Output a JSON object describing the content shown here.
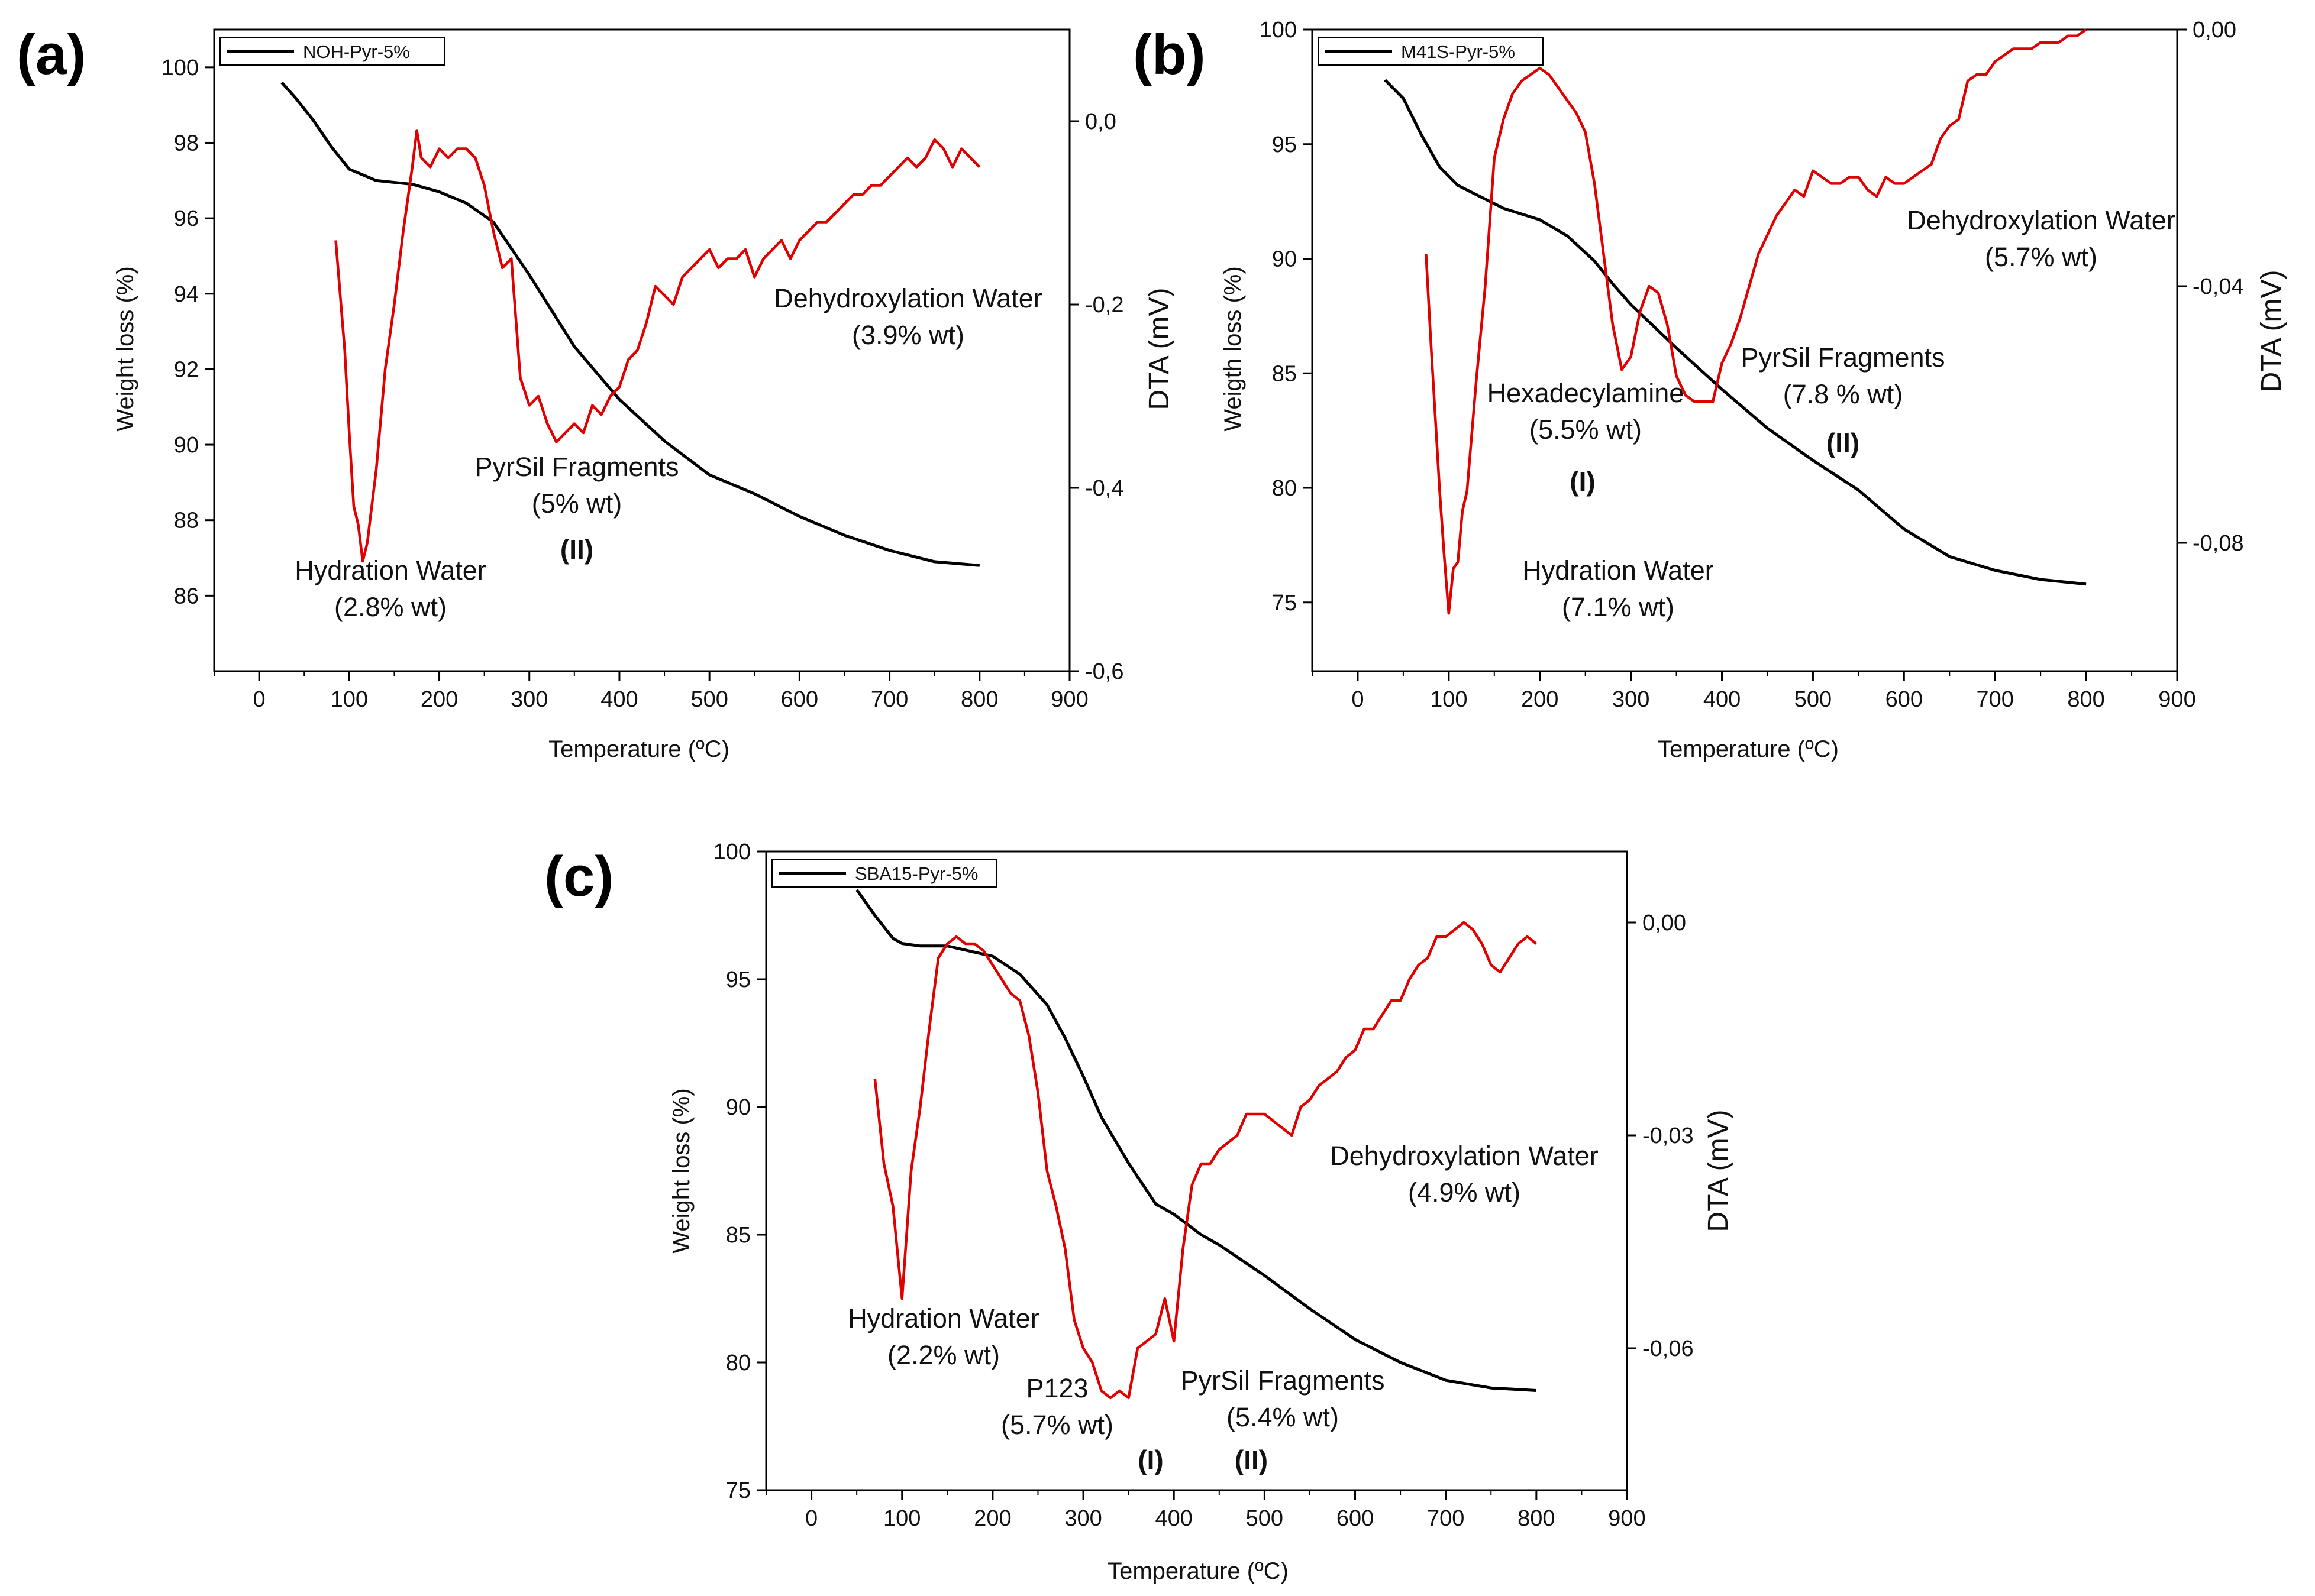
{
  "chart_data": [
    {
      "type": "line",
      "panel_label": "(a)",
      "xlabel": "Temperature (ºC)",
      "ylabel": "Weight loss (%)",
      "y2label": "DTA (mV)",
      "xlim": [
        -50,
        900
      ],
      "ylim": [
        84,
        101
      ],
      "y2lim": [
        -0.6,
        0.1
      ],
      "xticks": [
        "0",
        "100",
        "200",
        "300",
        "400",
        "500",
        "600",
        "700",
        "800",
        "900"
      ],
      "yticks": [
        "86",
        "88",
        "90",
        "92",
        "94",
        "96",
        "98",
        "100"
      ],
      "y2ticks": [
        "0,0",
        "-0,2",
        "-0,4",
        "-0,6"
      ],
      "legend": {
        "position": "top-left",
        "label": "NOH-Pyr-5%"
      },
      "series": [
        {
          "name": "NOH-Pyr-5%",
          "axis": "left",
          "color": "#000000",
          "x": [
            25,
            40,
            60,
            80,
            100,
            130,
            170,
            200,
            230,
            260,
            300,
            350,
            400,
            450,
            500,
            550,
            600,
            650,
            700,
            750,
            800
          ],
          "y": [
            99.6,
            99.2,
            98.6,
            97.9,
            97.3,
            97.0,
            96.9,
            96.7,
            96.4,
            95.9,
            94.5,
            92.6,
            91.2,
            90.1,
            89.2,
            88.7,
            88.1,
            87.6,
            87.2,
            86.9,
            86.8
          ]
        },
        {
          "name": "DTA",
          "axis": "right",
          "color": "#e00000",
          "x": [
            85,
            95,
            100,
            105,
            110,
            115,
            120,
            130,
            140,
            150,
            160,
            170,
            175,
            180,
            190,
            200,
            210,
            220,
            230,
            240,
            250,
            260,
            270,
            280,
            290,
            300,
            310,
            320,
            330,
            340,
            350,
            360,
            370,
            380,
            390,
            400,
            410,
            420,
            430,
            440,
            450,
            460,
            470,
            480,
            490,
            500,
            510,
            520,
            530,
            540,
            550,
            560,
            570,
            580,
            590,
            600,
            610,
            620,
            630,
            640,
            650,
            660,
            670,
            680,
            690,
            700,
            710,
            720,
            730,
            740,
            750,
            760,
            770,
            780,
            790,
            800
          ],
          "y": [
            -0.13,
            -0.25,
            -0.34,
            -0.42,
            -0.44,
            -0.48,
            -0.46,
            -0.38,
            -0.27,
            -0.2,
            -0.12,
            -0.05,
            -0.01,
            -0.04,
            -0.05,
            -0.03,
            -0.04,
            -0.03,
            -0.03,
            -0.04,
            -0.07,
            -0.12,
            -0.16,
            -0.15,
            -0.28,
            -0.31,
            -0.3,
            -0.33,
            -0.35,
            -0.34,
            -0.33,
            -0.34,
            -0.31,
            -0.32,
            -0.3,
            -0.29,
            -0.26,
            -0.25,
            -0.22,
            -0.18,
            -0.19,
            -0.2,
            -0.17,
            -0.16,
            -0.15,
            -0.14,
            -0.16,
            -0.15,
            -0.15,
            -0.14,
            -0.17,
            -0.15,
            -0.14,
            -0.13,
            -0.15,
            -0.13,
            -0.12,
            -0.11,
            -0.11,
            -0.1,
            -0.09,
            -0.08,
            -0.08,
            -0.07,
            -0.07,
            -0.06,
            -0.05,
            -0.04,
            -0.05,
            -0.04,
            -0.02,
            -0.03,
            -0.05,
            -0.03,
            -0.04,
            -0.05
          ]
        }
      ],
      "annotations": [
        {
          "lines": [
            "Hydration Water",
            "(2.8% wt)"
          ],
          "bold_line": ""
        },
        {
          "lines": [
            "PyrSil Fragments",
            "(5% wt)"
          ],
          "bold_line": "(II)"
        },
        {
          "lines": [
            "Dehydroxylation Water",
            "(3.9% wt)"
          ],
          "bold_line": ""
        }
      ]
    },
    {
      "type": "line",
      "panel_label": "(b)",
      "xlabel": "Temperature (ºC)",
      "ylabel": "Weigth loss (%)",
      "y2label": "DTA (mV)",
      "xlim": [
        -50,
        900
      ],
      "ylim": [
        72,
        100
      ],
      "y2lim": [
        -0.1,
        0.0
      ],
      "xticks": [
        "0",
        "100",
        "200",
        "300",
        "400",
        "500",
        "600",
        "700",
        "800",
        "900"
      ],
      "yticks": [
        "75",
        "80",
        "85",
        "90",
        "95",
        "100"
      ],
      "y2ticks": [
        "0,00",
        "-0,04",
        "-0,08"
      ],
      "legend": {
        "position": "top-left",
        "label": "M41S-Pyr-5%"
      },
      "series": [
        {
          "name": "M41S-Pyr-5%",
          "axis": "left",
          "color": "#000000",
          "x": [
            30,
            50,
            70,
            90,
            110,
            130,
            160,
            200,
            230,
            260,
            280,
            300,
            350,
            400,
            450,
            500,
            550,
            600,
            650,
            700,
            750,
            800
          ],
          "y": [
            97.8,
            97.0,
            95.4,
            94.0,
            93.2,
            92.8,
            92.2,
            91.7,
            91.0,
            89.9,
            88.9,
            88.0,
            86.1,
            84.3,
            82.6,
            81.2,
            79.9,
            78.2,
            77.0,
            76.4,
            76.0,
            75.8
          ]
        },
        {
          "name": "DTA",
          "axis": "right",
          "color": "#e00000",
          "x": [
            75,
            80,
            85,
            90,
            95,
            100,
            105,
            110,
            115,
            120,
            130,
            140,
            150,
            160,
            170,
            180,
            190,
            200,
            210,
            220,
            230,
            240,
            250,
            260,
            270,
            280,
            290,
            300,
            310,
            320,
            330,
            340,
            350,
            360,
            370,
            380,
            390,
            400,
            410,
            420,
            430,
            440,
            450,
            460,
            470,
            480,
            490,
            500,
            510,
            520,
            530,
            540,
            550,
            560,
            570,
            580,
            590,
            600,
            610,
            620,
            630,
            640,
            650,
            660,
            670,
            680,
            690,
            700,
            710,
            720,
            730,
            740,
            750,
            760,
            770,
            780,
            790,
            800
          ],
          "y": [
            -0.035,
            -0.048,
            -0.06,
            -0.072,
            -0.082,
            -0.091,
            -0.084,
            -0.083,
            -0.075,
            -0.072,
            -0.055,
            -0.04,
            -0.02,
            -0.014,
            -0.01,
            -0.008,
            -0.007,
            -0.006,
            -0.007,
            -0.009,
            -0.011,
            -0.013,
            -0.016,
            -0.024,
            -0.035,
            -0.046,
            -0.053,
            -0.051,
            -0.044,
            -0.04,
            -0.041,
            -0.046,
            -0.054,
            -0.057,
            -0.058,
            -0.058,
            -0.058,
            -0.052,
            -0.049,
            -0.045,
            -0.04,
            -0.035,
            -0.032,
            -0.029,
            -0.027,
            -0.025,
            -0.026,
            -0.022,
            -0.023,
            -0.024,
            -0.024,
            -0.023,
            -0.023,
            -0.025,
            -0.026,
            -0.023,
            -0.024,
            -0.024,
            -0.023,
            -0.022,
            -0.021,
            -0.017,
            -0.015,
            -0.014,
            -0.008,
            -0.007,
            -0.007,
            -0.005,
            -0.004,
            -0.003,
            -0.003,
            -0.003,
            -0.002,
            -0.002,
            -0.002,
            -0.001,
            -0.001,
            0.0
          ]
        }
      ],
      "annotations": [
        {
          "lines": [
            "Hexadecylamine",
            "(5.5% wt)"
          ],
          "bold_line": "(I)"
        },
        {
          "lines": [
            "Hydration Water",
            "(7.1% wt)"
          ],
          "bold_line": ""
        },
        {
          "lines": [
            "PyrSil Fragments",
            "(7.8 % wt)"
          ],
          "bold_line": "(II)"
        },
        {
          "lines": [
            "Dehydroxylation Water",
            "(5.7% wt)"
          ],
          "bold_line": ""
        }
      ]
    },
    {
      "type": "line",
      "panel_label": "(c)",
      "xlabel": "Temperature (ºC)",
      "ylabel": "Weight loss (%)",
      "y2label": "DTA (mV)",
      "xlim": [
        -50,
        900
      ],
      "ylim": [
        75,
        100
      ],
      "y2lim": [
        -0.08,
        0.01
      ],
      "xticks": [
        "0",
        "100",
        "200",
        "300",
        "400",
        "500",
        "600",
        "700",
        "800",
        "900"
      ],
      "yticks": [
        "75",
        "80",
        "85",
        "90",
        "95",
        "100"
      ],
      "y2ticks": [
        "0,00",
        "-0,03",
        "-0,06"
      ],
      "legend": {
        "position": "top-left",
        "label": "SBA15-Pyr-5%"
      },
      "series": [
        {
          "name": "SBA15-Pyr-5%",
          "axis": "left",
          "color": "#000000",
          "x": [
            50,
            70,
            90,
            100,
            120,
            150,
            200,
            230,
            260,
            280,
            300,
            320,
            350,
            380,
            400,
            430,
            450,
            500,
            550,
            600,
            650,
            700,
            750,
            800
          ],
          "y": [
            98.5,
            97.5,
            96.6,
            96.4,
            96.3,
            96.3,
            95.9,
            95.2,
            94.0,
            92.7,
            91.2,
            89.6,
            87.8,
            86.2,
            85.8,
            85.0,
            84.6,
            83.4,
            82.1,
            80.9,
            80.0,
            79.3,
            79.0,
            78.9
          ]
        },
        {
          "name": "DTA",
          "axis": "right",
          "color": "#e00000",
          "x": [
            70,
            80,
            90,
            100,
            110,
            120,
            130,
            140,
            150,
            160,
            170,
            180,
            190,
            200,
            210,
            220,
            230,
            240,
            250,
            260,
            270,
            280,
            290,
            300,
            310,
            320,
            330,
            340,
            350,
            360,
            370,
            380,
            390,
            400,
            410,
            420,
            430,
            440,
            450,
            460,
            470,
            480,
            490,
            500,
            510,
            520,
            530,
            540,
            550,
            560,
            570,
            580,
            590,
            600,
            610,
            620,
            630,
            640,
            650,
            660,
            670,
            680,
            690,
            700,
            710,
            720,
            730,
            740,
            750,
            760,
            770,
            780,
            790,
            800
          ],
          "y": [
            -0.022,
            -0.034,
            -0.04,
            -0.053,
            -0.035,
            -0.026,
            -0.015,
            -0.005,
            -0.003,
            -0.002,
            -0.003,
            -0.003,
            -0.004,
            -0.006,
            -0.008,
            -0.01,
            -0.011,
            -0.016,
            -0.024,
            -0.035,
            -0.04,
            -0.046,
            -0.056,
            -0.06,
            -0.062,
            -0.066,
            -0.067,
            -0.066,
            -0.067,
            -0.06,
            -0.059,
            -0.058,
            -0.053,
            -0.059,
            -0.046,
            -0.037,
            -0.034,
            -0.034,
            -0.032,
            -0.031,
            -0.03,
            -0.027,
            -0.027,
            -0.027,
            -0.028,
            -0.029,
            -0.03,
            -0.026,
            -0.025,
            -0.023,
            -0.022,
            -0.021,
            -0.019,
            -0.018,
            -0.015,
            -0.015,
            -0.013,
            -0.011,
            -0.011,
            -0.008,
            -0.006,
            -0.005,
            -0.002,
            -0.002,
            -0.001,
            0.0,
            -0.001,
            -0.003,
            -0.006,
            -0.007,
            -0.005,
            -0.003,
            -0.002,
            -0.003
          ]
        }
      ],
      "annotations": [
        {
          "lines": [
            "Hydration Water",
            "(2.2% wt)"
          ],
          "bold_line": ""
        },
        {
          "lines": [
            "P123",
            "(5.7% wt)"
          ],
          "bold_line": "(I)"
        },
        {
          "lines": [
            "PyrSil Fragments",
            "(5.4% wt)"
          ],
          "bold_line": "(II)"
        },
        {
          "lines": [
            "Dehydroxylation Water",
            "(4.9% wt)"
          ],
          "bold_line": ""
        }
      ]
    }
  ]
}
